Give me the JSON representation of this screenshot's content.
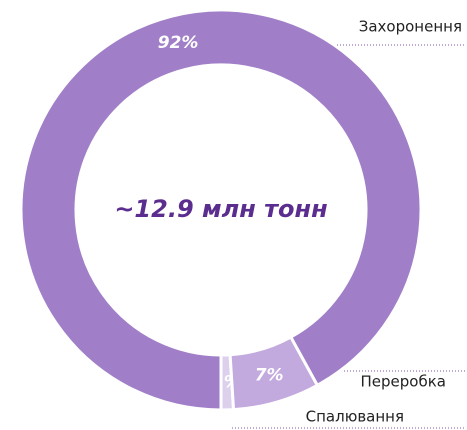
{
  "chart_data": {
    "type": "donut",
    "center_label": "~12.9 млн тонн",
    "categories": [
      "Захоронення",
      "Переробка",
      "Спалювання"
    ],
    "values": [
      92,
      7,
      1
    ],
    "value_labels": [
      "92%",
      "7%",
      "1%"
    ],
    "colors": [
      "#a07fc8",
      "#c2a9de",
      "#ddd0ec"
    ]
  }
}
